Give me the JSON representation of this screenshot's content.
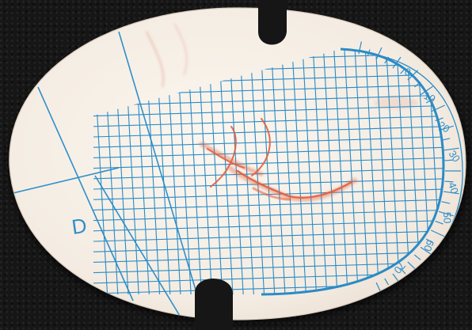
{
  "photo": {
    "subject": "",
    "disc_letter": "D",
    "scale_labels": [
      "0",
      "10",
      "20",
      "30",
      "40",
      "50",
      "60",
      "70"
    ],
    "colors": {
      "background": "#161616",
      "disc": "#f6efe7",
      "grid": "#2a8bc6",
      "handwriting": "#e0603e"
    }
  }
}
